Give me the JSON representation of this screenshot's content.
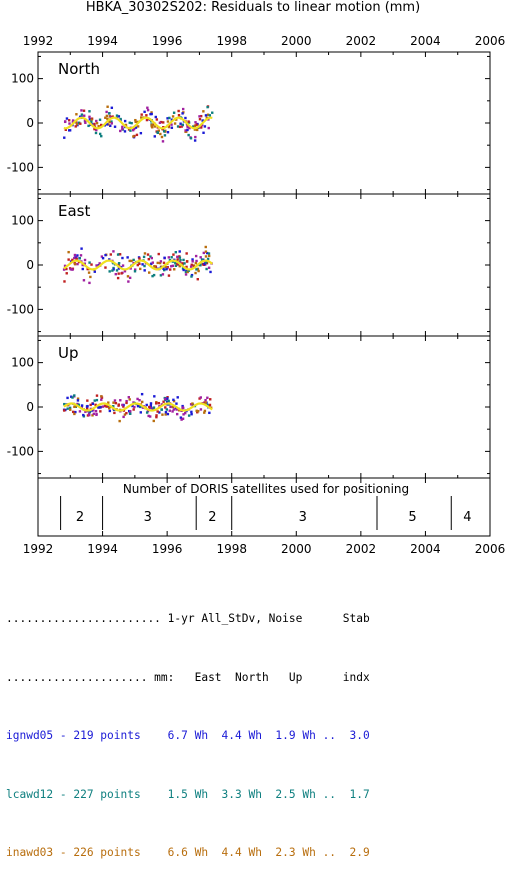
{
  "title": "HBKA_30302S202: Residuals to linear motion (mm)",
  "colors": {
    "series1": "#1a1ad6",
    "series2": "#0e7f7f",
    "series3": "#b86e0e",
    "fit": "#f0e020",
    "extra_points": [
      "#c02020",
      "#a020a0"
    ]
  },
  "chart_data": {
    "type": "scatter",
    "x_ticks": [
      1992,
      1994,
      1996,
      1998,
      2000,
      2002,
      2004,
      2006
    ],
    "xlim": [
      1992,
      2006
    ],
    "panels": [
      {
        "label": "North",
        "ylim": [
          -160,
          160
        ],
        "y_ticks": [
          100,
          0,
          -100
        ],
        "amplitude": 12,
        "scatter": 22
      },
      {
        "label": "East",
        "ylim": [
          -160,
          160
        ],
        "y_ticks": [
          100,
          0,
          -100
        ],
        "amplitude": 10,
        "scatter": 24
      },
      {
        "label": "Up",
        "ylim": [
          -160,
          160
        ],
        "y_ticks": [
          100,
          0,
          -100
        ],
        "amplitude": 8,
        "scatter": 18
      }
    ],
    "data_span": [
      1992.8,
      1997.4
    ],
    "satellites": {
      "caption": "Number of DORIS satellites used for positioning",
      "boundaries": [
        1992.7,
        1994.0,
        1996.9,
        1998.0,
        2002.5,
        2004.8
      ],
      "segments": [
        {
          "label": "2",
          "center": 1993.3
        },
        {
          "label": "3",
          "center": 1995.4
        },
        {
          "label": "2",
          "center": 1997.4
        },
        {
          "label": "3",
          "center": 2000.2
        },
        {
          "label": "5",
          "center": 2003.6
        },
        {
          "label": "4",
          "center": 2005.3
        }
      ]
    },
    "series": [
      {
        "name": "ignwd05"
      },
      {
        "name": "lcawd12"
      },
      {
        "name": "inawd03"
      }
    ]
  },
  "stats": {
    "header1": "....................... 1-yr All_StDv, Noise      Stab",
    "header2": "..................... mm:   East  North   Up      indx",
    "rows": [
      "ignwd05 - 219 points    6.7 Wh  4.4 Wh  1.9 Wh ..  3.0",
      "lcawd12 - 227 points    1.5 Wh  3.3 Wh  2.5 Wh ..  1.7",
      "inawd03 - 226 points    6.6 Wh  4.4 Wh  2.3 Wh ..  2.9"
    ]
  }
}
